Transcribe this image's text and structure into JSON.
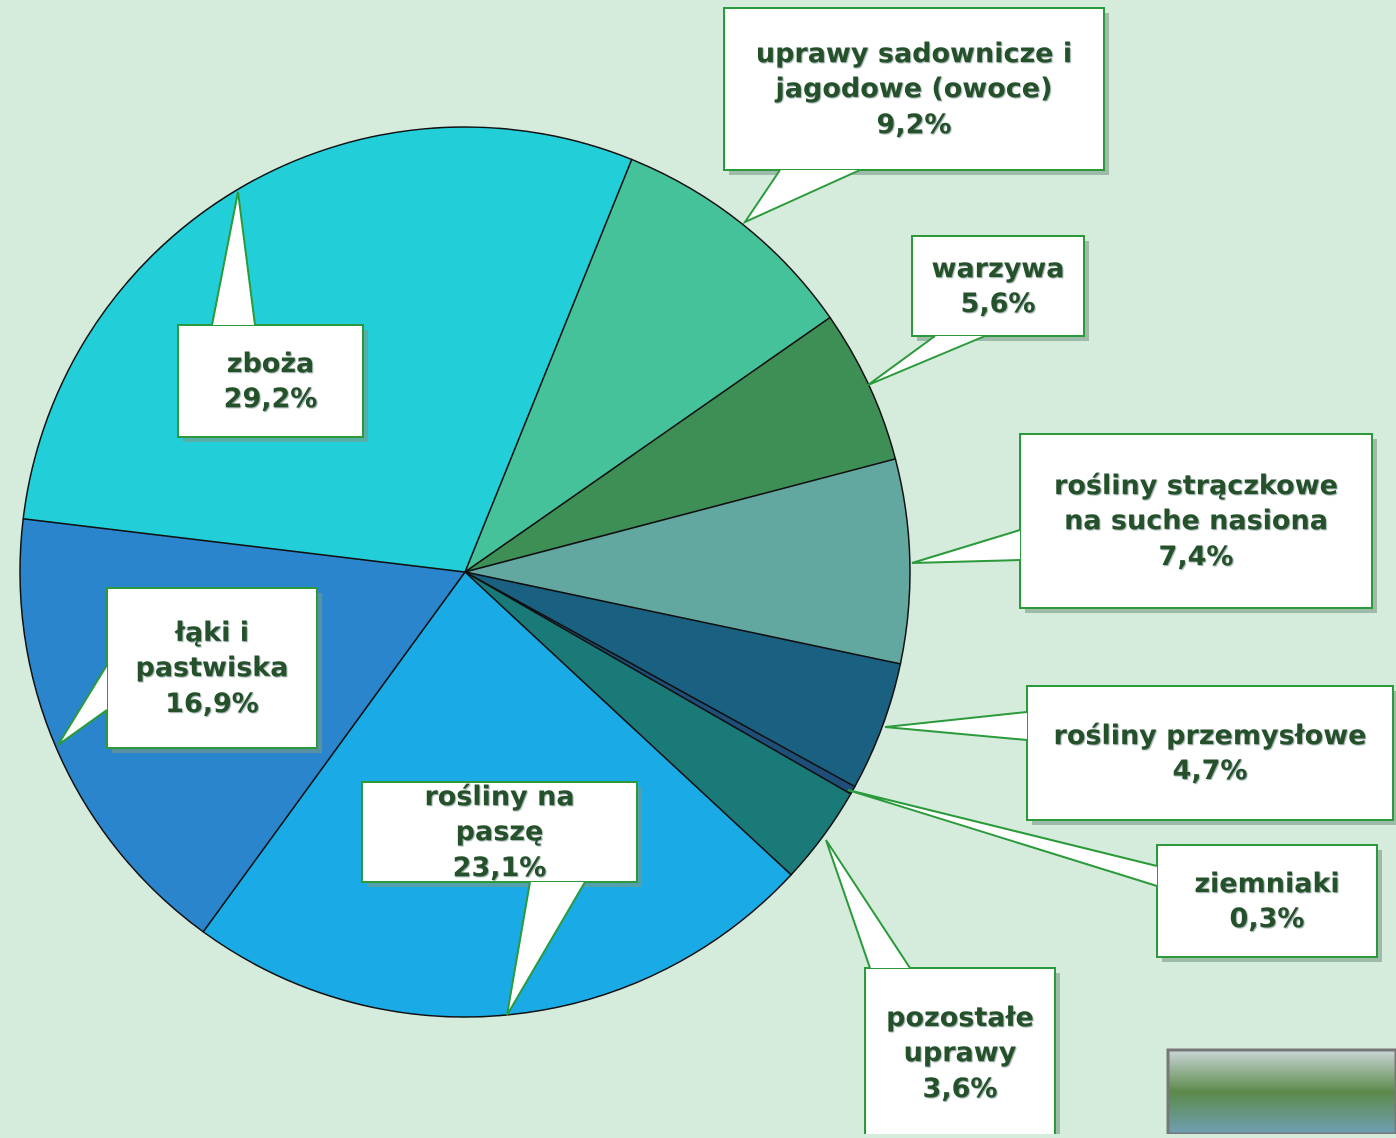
{
  "chart_data": {
    "type": "pie",
    "categories": [
      "uprawy sadownicze i jagodowe (owoce)",
      "warzywa",
      "rośliny strączkowe na suche nasiona",
      "rośliny przemysłowe",
      "ziemniaki",
      "pozostałe uprawy",
      "rośliny na paszę",
      "łąki i pastwiska",
      "zboża"
    ],
    "values": [
      9.2,
      5.6,
      7.4,
      4.7,
      0.3,
      3.6,
      23.1,
      16.9,
      29.2
    ],
    "value_labels": [
      "9,2%",
      "5,6%",
      "7,4%",
      "4,7%",
      "0,3%",
      "3,6%",
      "23,1%",
      "16,9%",
      "29,2%"
    ],
    "colors": [
      "#45c29a",
      "#3d8f55",
      "#62a8a0",
      "#1a6080",
      "#1d4f7a",
      "#1a7a78",
      "#1aaae6",
      "#2a85cc",
      "#22cfd8"
    ]
  }
}
